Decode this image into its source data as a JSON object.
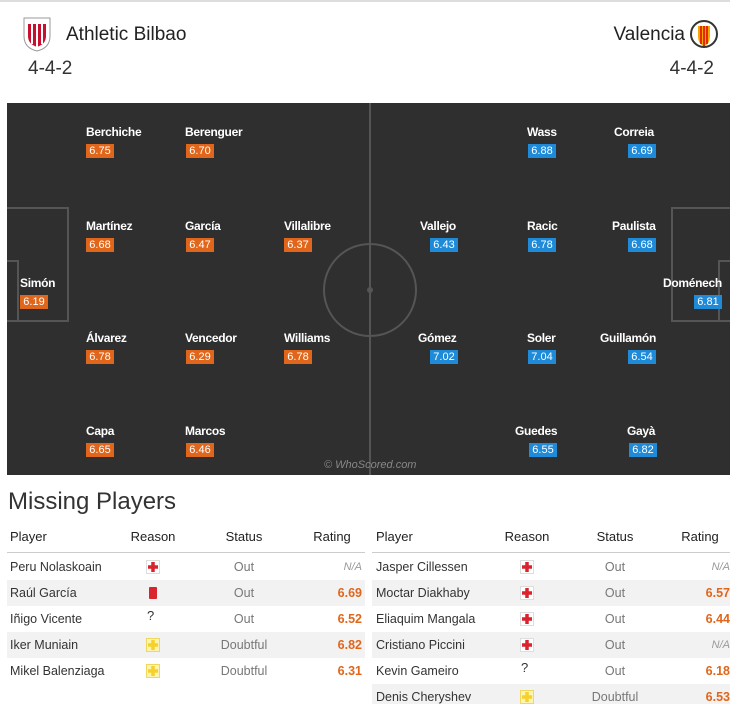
{
  "header": {
    "home": {
      "name": "Athletic Bilbao",
      "formation": "4-4-2"
    },
    "away": {
      "name": "Valencia",
      "formation": "4-4-2"
    }
  },
  "pitch": {
    "watermark": "© WhoScored.com",
    "home": [
      {
        "name": "Berchiche",
        "rating": "6.75"
      },
      {
        "name": "Berenguer",
        "rating": "6.70"
      },
      {
        "name": "Martínez",
        "rating": "6.68"
      },
      {
        "name": "García",
        "rating": "6.47"
      },
      {
        "name": "Villalibre",
        "rating": "6.37"
      },
      {
        "name": "Simón",
        "rating": "6.19"
      },
      {
        "name": "Álvarez",
        "rating": "6.78"
      },
      {
        "name": "Vencedor",
        "rating": "6.29"
      },
      {
        "name": "Williams",
        "rating": "6.78"
      },
      {
        "name": "Capa",
        "rating": "6.65"
      },
      {
        "name": "Marcos",
        "rating": "6.46"
      }
    ],
    "away": [
      {
        "name": "Wass",
        "rating": "6.88"
      },
      {
        "name": "Correia",
        "rating": "6.69"
      },
      {
        "name": "Vallejo",
        "rating": "6.43"
      },
      {
        "name": "Racic",
        "rating": "6.78"
      },
      {
        "name": "Paulista",
        "rating": "6.68"
      },
      {
        "name": "Doménech",
        "rating": "6.81"
      },
      {
        "name": "Gómez",
        "rating": "7.02"
      },
      {
        "name": "Soler",
        "rating": "7.04"
      },
      {
        "name": "Guillamón",
        "rating": "6.54"
      },
      {
        "name": "Guedes",
        "rating": "6.55"
      },
      {
        "name": "Gayà",
        "rating": "6.82"
      }
    ]
  },
  "missing": {
    "title": "Missing Players",
    "columns": [
      "Player",
      "Reason",
      "Status",
      "Rating"
    ],
    "home": [
      {
        "player": "Peru Nolaskoain",
        "reason": "injury",
        "status": "Out",
        "rating": "N/A"
      },
      {
        "player": "Raúl García",
        "reason": "red-card",
        "status": "Out",
        "rating": "6.69"
      },
      {
        "player": "Iñigo Vicente",
        "reason": "?",
        "status": "Out",
        "rating": "6.52"
      },
      {
        "player": "Iker Muniain",
        "reason": "doubtful",
        "status": "Doubtful",
        "rating": "6.82"
      },
      {
        "player": "Mikel Balenziaga",
        "reason": "doubtful",
        "status": "Doubtful",
        "rating": "6.31"
      }
    ],
    "away": [
      {
        "player": "Jasper Cillessen",
        "reason": "injury",
        "status": "Out",
        "rating": "N/A"
      },
      {
        "player": "Moctar Diakhaby",
        "reason": "injury",
        "status": "Out",
        "rating": "6.57"
      },
      {
        "player": "Eliaquim Mangala",
        "reason": "injury",
        "status": "Out",
        "rating": "6.44"
      },
      {
        "player": "Cristiano Piccini",
        "reason": "injury",
        "status": "Out",
        "rating": "N/A"
      },
      {
        "player": "Kevin Gameiro",
        "reason": "?",
        "status": "Out",
        "rating": "6.18"
      },
      {
        "player": "Denis Cheryshev",
        "reason": "doubtful",
        "status": "Doubtful",
        "rating": "6.53"
      }
    ]
  }
}
